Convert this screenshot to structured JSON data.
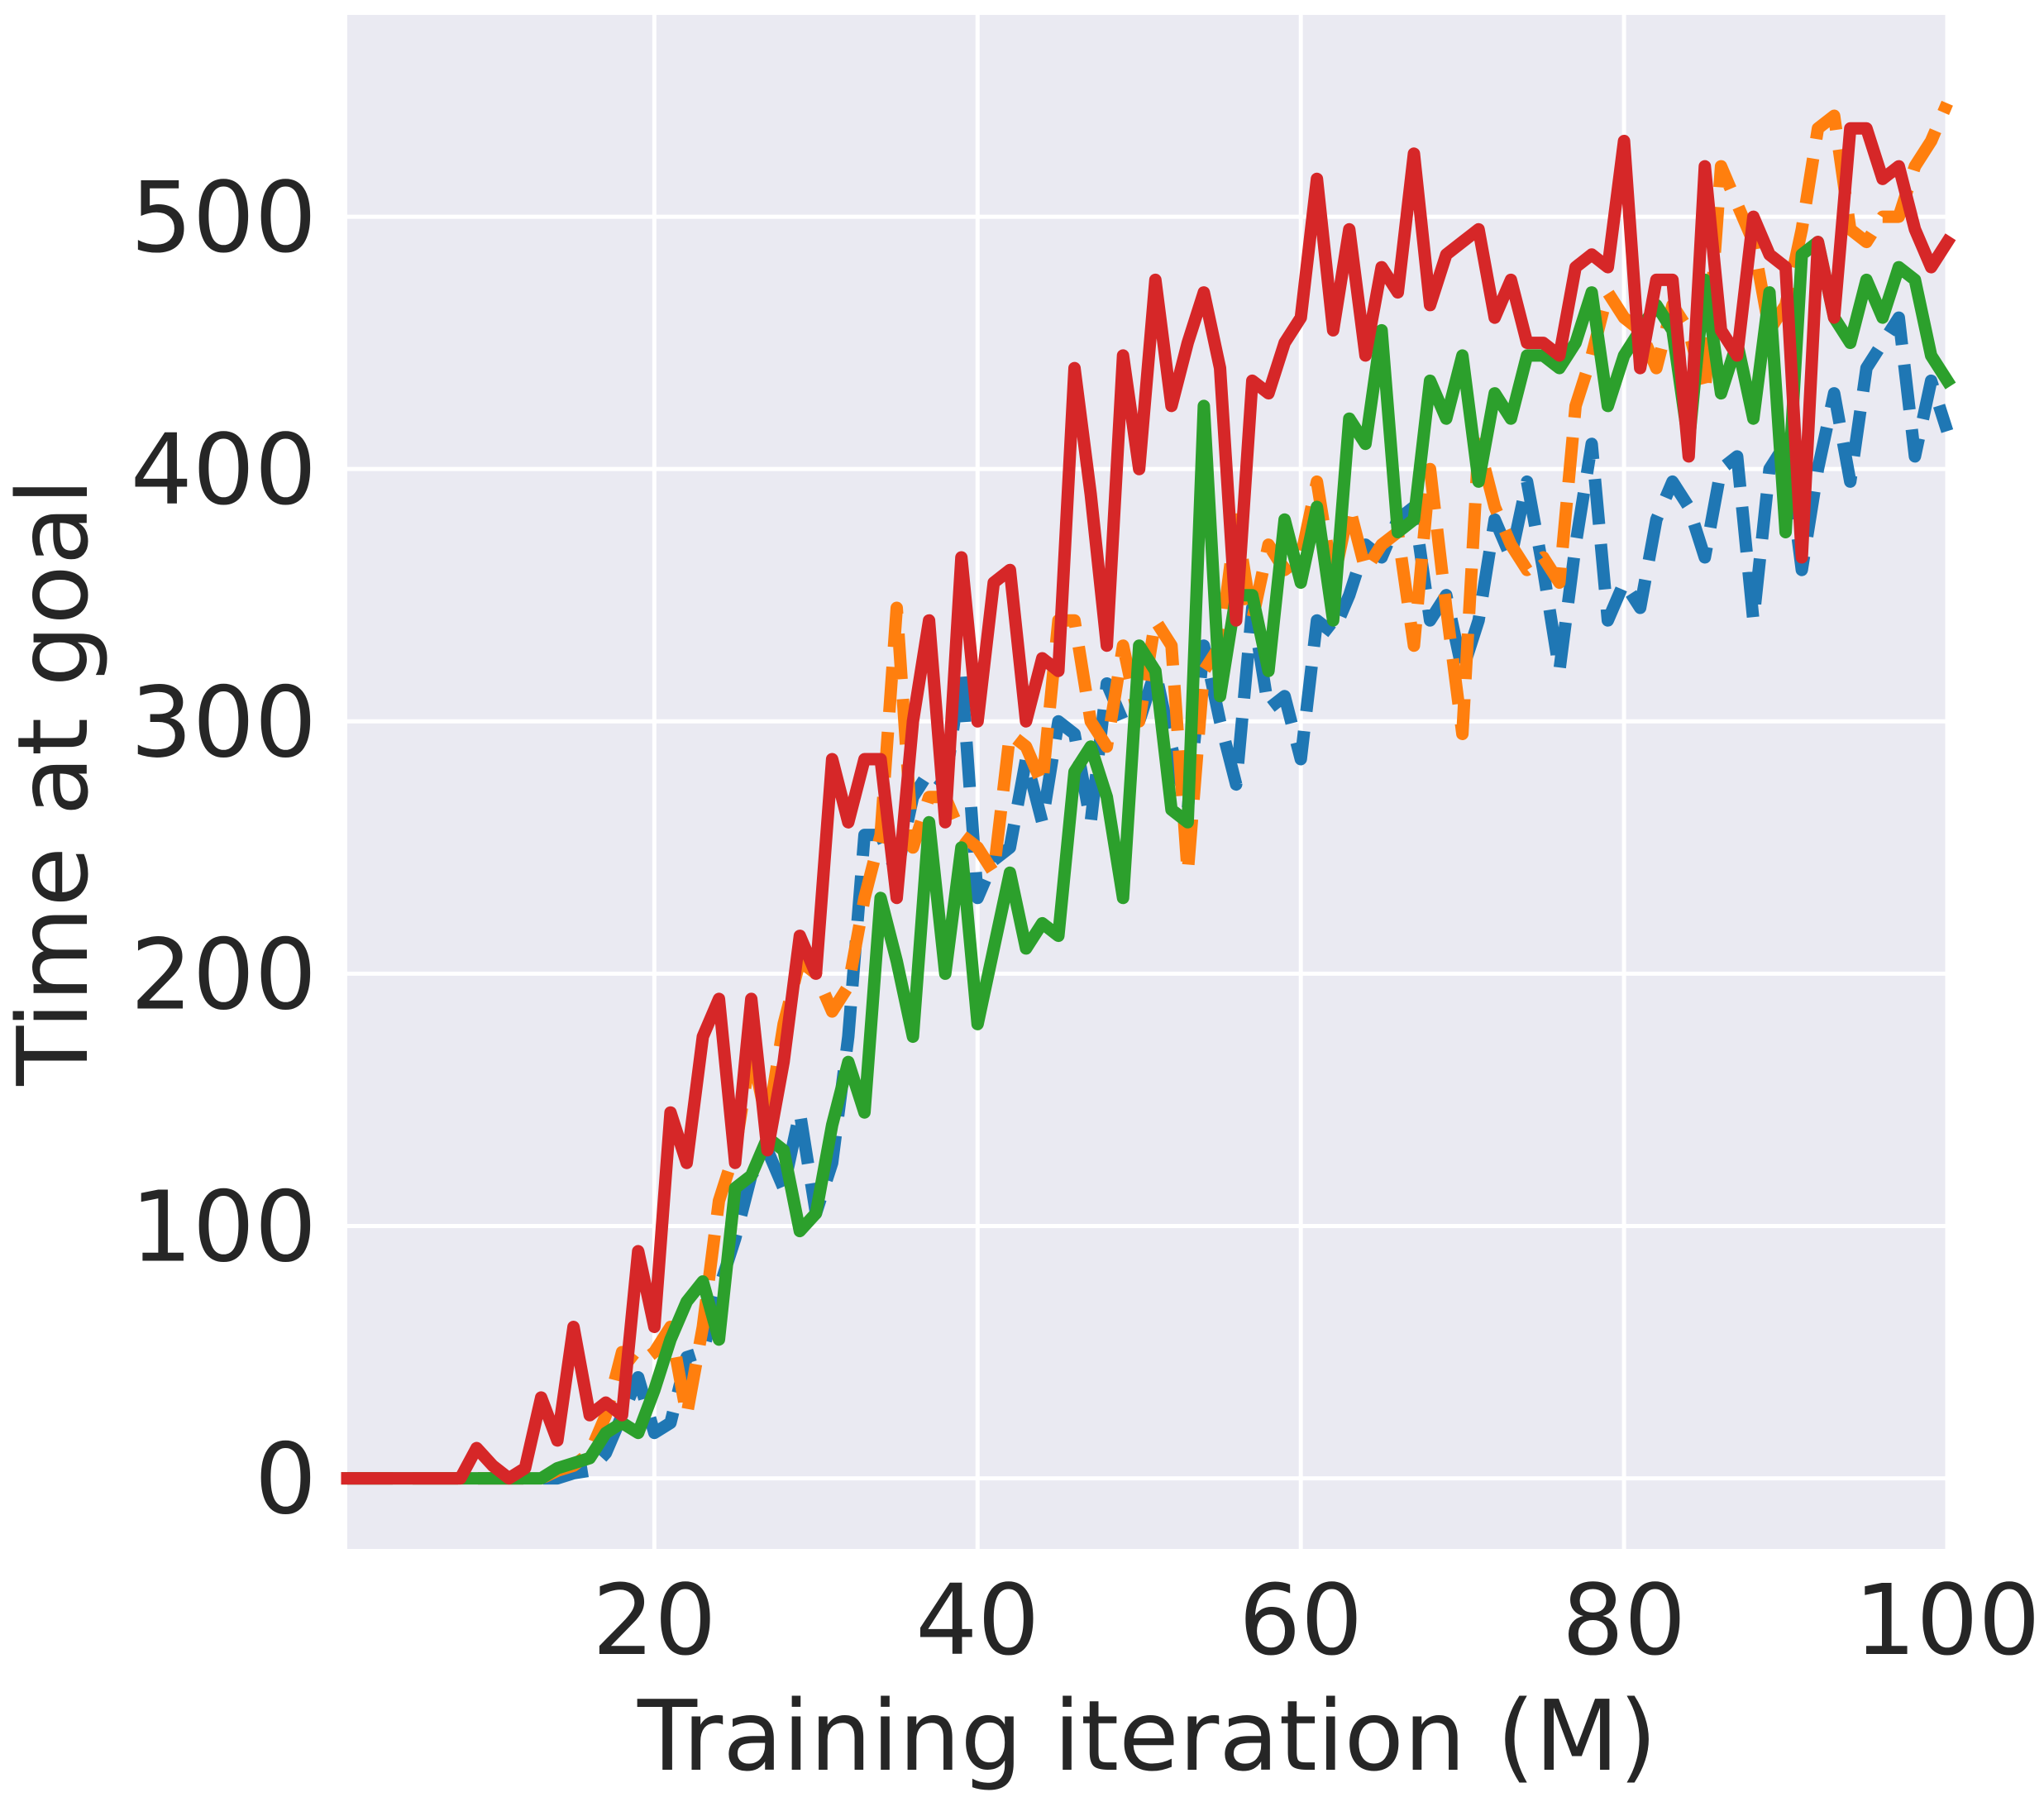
{
  "chart_data": {
    "type": "line",
    "title": "",
    "xlabel": "Training iteration (M)",
    "ylabel": "Time at goal",
    "xlim": [
      1,
      100
    ],
    "ylim": [
      -28,
      580
    ],
    "xticks": [
      20,
      40,
      60,
      80,
      100
    ],
    "yticks": [
      0,
      100,
      200,
      300,
      400,
      500
    ],
    "grid": true,
    "legend": "none",
    "background": "#eaeaf2",
    "x": [
      1,
      2,
      3,
      4,
      5,
      6,
      7,
      8,
      9,
      10,
      11,
      12,
      13,
      14,
      15,
      16,
      17,
      18,
      19,
      20,
      21,
      22,
      23,
      24,
      25,
      26,
      27,
      28,
      29,
      30,
      31,
      32,
      33,
      34,
      35,
      36,
      37,
      38,
      39,
      40,
      41,
      42,
      43,
      44,
      45,
      46,
      47,
      48,
      49,
      50,
      51,
      52,
      53,
      54,
      55,
      56,
      57,
      58,
      59,
      60,
      61,
      62,
      63,
      64,
      65,
      66,
      67,
      68,
      69,
      70,
      71,
      72,
      73,
      74,
      75,
      76,
      77,
      78,
      79,
      80,
      81,
      82,
      83,
      84,
      85,
      86,
      87,
      88,
      89,
      90,
      91,
      92,
      93,
      94,
      95,
      96,
      97,
      98,
      99,
      100
    ],
    "series": [
      {
        "color": "#1f77b4",
        "dash": "dashed",
        "values": [
          0,
          0,
          0,
          0,
          0,
          0,
          0,
          0,
          0,
          0,
          0,
          0,
          0,
          0,
          2,
          3,
          10,
          25,
          40,
          18,
          22,
          48,
          50,
          75,
          95,
          120,
          130,
          115,
          145,
          105,
          125,
          175,
          255,
          255,
          240,
          270,
          280,
          275,
          320,
          230,
          245,
          250,
          285,
          260,
          300,
          295,
          260,
          315,
          300,
          300,
          320,
          290,
          265,
          330,
          300,
          275,
          345,
          305,
          310,
          285,
          340,
          335,
          350,
          370,
          365,
          380,
          385,
          340,
          350,
          320,
          340,
          380,
          365,
          395,
          360,
          320,
          370,
          410,
          340,
          355,
          345,
          380,
          395,
          385,
          365,
          400,
          405,
          340,
          400,
          410,
          360,
          400,
          430,
          395,
          440,
          450,
          460,
          405,
          435,
          415
        ]
      },
      {
        "color": "#ff7f0e",
        "dash": "dashed",
        "values": [
          0,
          0,
          0,
          0,
          0,
          0,
          0,
          0,
          0,
          0,
          0,
          0,
          0,
          3,
          5,
          10,
          25,
          50,
          45,
          50,
          60,
          25,
          60,
          110,
          130,
          170,
          140,
          180,
          205,
          200,
          185,
          195,
          230,
          255,
          345,
          250,
          270,
          270,
          255,
          250,
          240,
          295,
          290,
          275,
          340,
          340,
          300,
          290,
          330,
          300,
          340,
          330,
          240,
          320,
          330,
          380,
          340,
          370,
          360,
          365,
          395,
          355,
          385,
          360,
          370,
          375,
          330,
          400,
          345,
          295,
          410,
          385,
          370,
          360,
          365,
          355,
          425,
          445,
          470,
          460,
          455,
          440,
          465,
          455,
          430,
          520,
          505,
          490,
          455,
          465,
          495,
          535,
          540,
          495,
          490,
          500,
          500,
          520,
          530,
          545
        ]
      },
      {
        "color": "#2ca02c",
        "dash": "solid",
        "values": [
          0,
          0,
          0,
          0,
          0,
          0,
          0,
          0,
          0,
          0,
          0,
          0,
          0,
          4,
          6,
          8,
          18,
          22,
          18,
          35,
          55,
          70,
          78,
          55,
          115,
          120,
          135,
          130,
          98,
          105,
          140,
          165,
          145,
          230,
          205,
          175,
          260,
          200,
          250,
          180,
          210,
          240,
          210,
          220,
          215,
          280,
          290,
          270,
          230,
          330,
          320,
          265,
          260,
          425,
          310,
          350,
          350,
          320,
          380,
          355,
          385,
          340,
          420,
          410,
          455,
          375,
          380,
          435,
          420,
          445,
          395,
          430,
          420,
          445,
          445,
          440,
          450,
          470,
          425,
          445,
          455,
          465,
          455,
          410,
          475,
          430,
          450,
          420,
          470,
          375,
          485,
          490,
          460,
          450,
          475,
          460,
          480,
          475,
          445,
          435
        ]
      },
      {
        "color": "#d62728",
        "dash": "solid",
        "values": [
          0,
          0,
          0,
          0,
          0,
          0,
          0,
          0,
          12,
          5,
          0,
          4,
          32,
          15,
          60,
          25,
          30,
          25,
          90,
          60,
          145,
          125,
          175,
          190,
          125,
          190,
          130,
          165,
          215,
          200,
          285,
          260,
          285,
          285,
          230,
          300,
          340,
          260,
          365,
          300,
          355,
          360,
          300,
          325,
          320,
          440,
          390,
          330,
          445,
          400,
          475,
          425,
          450,
          470,
          440,
          340,
          435,
          430,
          450,
          460,
          515,
          455,
          495,
          445,
          480,
          470,
          525,
          465,
          485,
          490,
          495,
          460,
          475,
          450,
          450,
          445,
          480,
          485,
          480,
          530,
          440,
          475,
          475,
          405,
          520,
          455,
          445,
          500,
          485,
          480,
          365,
          490,
          460,
          535,
          535,
          515,
          520,
          495,
          480,
          490
        ]
      }
    ]
  }
}
